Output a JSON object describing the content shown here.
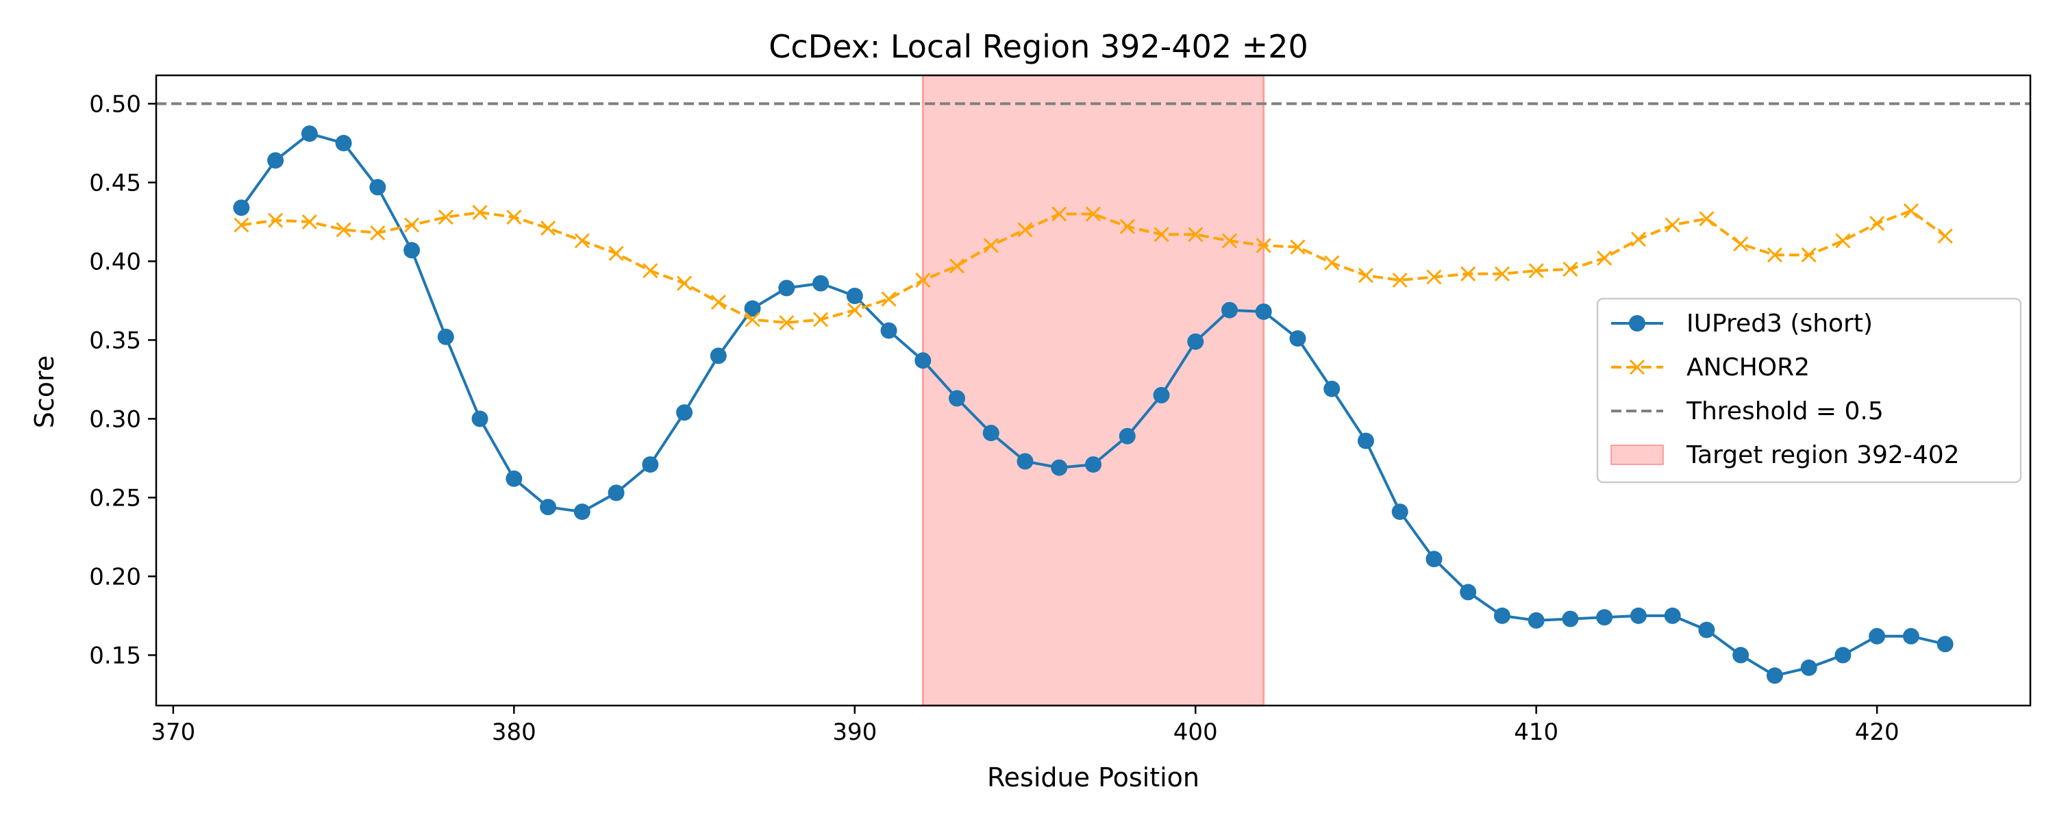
{
  "chart_data": {
    "type": "line",
    "title": "CcDex: Local Region 392-402 ±20",
    "xlabel": "Residue Position",
    "ylabel": "Score",
    "xlim": [
      369.5,
      424.5
    ],
    "ylim": [
      0.118,
      0.518
    ],
    "xticks": [
      370,
      380,
      390,
      400,
      410,
      420
    ],
    "yticks": [
      0.15,
      0.2,
      0.25,
      0.3,
      0.35,
      0.4,
      0.45,
      0.5
    ],
    "x": [
      372,
      373,
      374,
      375,
      376,
      377,
      378,
      379,
      380,
      381,
      382,
      383,
      384,
      385,
      386,
      387,
      388,
      389,
      390,
      391,
      392,
      393,
      394,
      395,
      396,
      397,
      398,
      399,
      400,
      401,
      402,
      403,
      404,
      405,
      406,
      407,
      408,
      409,
      410,
      411,
      412,
      413,
      414,
      415,
      416,
      417,
      418,
      419,
      420,
      421,
      422
    ],
    "series": [
      {
        "name": "IUPred3 (short)",
        "color": "#1f77b4",
        "marker": "circle",
        "linestyle": "solid",
        "values": [
          0.434,
          0.464,
          0.481,
          0.475,
          0.447,
          0.407,
          0.352,
          0.3,
          0.262,
          0.244,
          0.241,
          0.253,
          0.271,
          0.304,
          0.34,
          0.37,
          0.383,
          0.386,
          0.378,
          0.356,
          0.337,
          0.313,
          0.291,
          0.273,
          0.269,
          0.271,
          0.289,
          0.315,
          0.349,
          0.369,
          0.368,
          0.351,
          0.319,
          0.286,
          0.241,
          0.211,
          0.19,
          0.175,
          0.172,
          0.173,
          0.174,
          0.175,
          0.175,
          0.166,
          0.15,
          0.137,
          0.142,
          0.15,
          0.162,
          0.162,
          0.157
        ]
      },
      {
        "name": "ANCHOR2",
        "color": "#ffa500",
        "marker": "x",
        "linestyle": "dashed",
        "values": [
          0.423,
          0.426,
          0.425,
          0.42,
          0.418,
          0.423,
          0.428,
          0.431,
          0.428,
          0.421,
          0.413,
          0.405,
          0.394,
          0.386,
          0.374,
          0.363,
          0.361,
          0.363,
          0.369,
          0.376,
          0.388,
          0.397,
          0.41,
          0.42,
          0.43,
          0.43,
          0.422,
          0.417,
          0.417,
          0.413,
          0.41,
          0.409,
          0.399,
          0.391,
          0.388,
          0.39,
          0.392,
          0.392,
          0.394,
          0.395,
          0.402,
          0.414,
          0.423,
          0.427,
          0.411,
          0.404,
          0.404,
          0.413,
          0.424,
          0.432,
          0.416
        ]
      }
    ],
    "threshold": {
      "name": "Threshold = 0.5",
      "value": 0.5,
      "color": "#808080"
    },
    "region": {
      "name": "Target region 392-402",
      "x0": 392,
      "x1": 402,
      "color": "#ff9999"
    },
    "legend": "center-right",
    "grid": false
  }
}
